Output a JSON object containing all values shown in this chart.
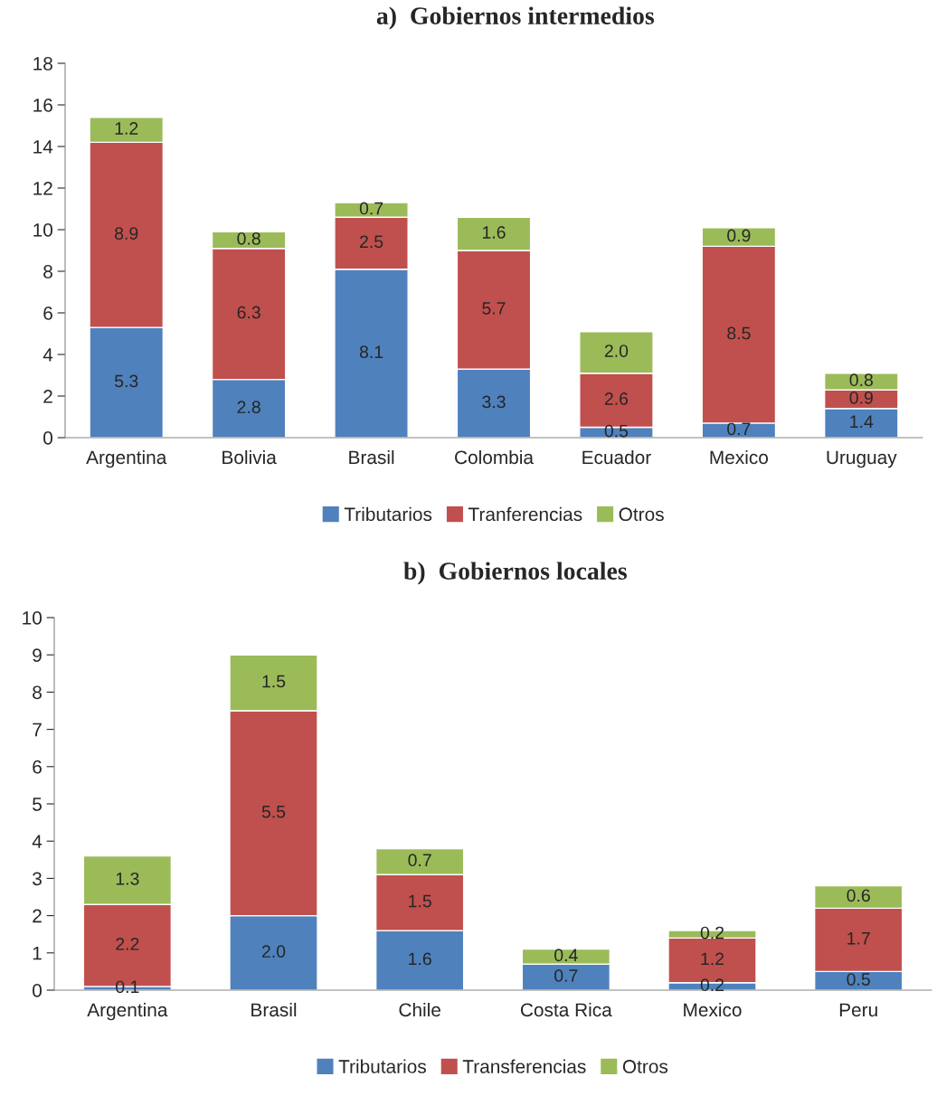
{
  "chart_data": [
    {
      "type": "bar",
      "title": "a)  Gobiernos intermedios",
      "stacked": true,
      "legend": "bottom",
      "grid": false,
      "categories": [
        "Argentina",
        "Bolivia",
        "Brasil",
        "Colombia",
        "Ecuador",
        "Mexico",
        "Uruguay"
      ],
      "ylim": [
        0,
        18
      ],
      "yticks": [
        0,
        2,
        4,
        6,
        8,
        10,
        12,
        14,
        16,
        18
      ],
      "series": [
        {
          "name": "Tributarios",
          "color": "#4f81bd",
          "values": [
            5.3,
            2.8,
            8.1,
            3.3,
            0.5,
            0.7,
            1.4
          ],
          "value_labels": [
            "5.3",
            "2.8",
            "8.1",
            "3.3",
            "0.5",
            "0.7",
            "1.4"
          ]
        },
        {
          "name": "Tranferencias",
          "color": "#c0504d",
          "values": [
            8.9,
            6.3,
            2.5,
            5.7,
            2.6,
            8.5,
            0.9
          ],
          "value_labels": [
            "8.9",
            "6.3",
            "2.5",
            "5.7",
            "2.6",
            "8.5",
            "0.9"
          ]
        },
        {
          "name": "Otros",
          "color": "#9bbb59",
          "values": [
            1.2,
            0.8,
            0.7,
            1.6,
            2.0,
            0.9,
            0.8
          ],
          "value_labels": [
            "1.2",
            "0.8",
            "0.7",
            "1.6",
            "2.0",
            "0.9",
            "0.8"
          ]
        }
      ]
    },
    {
      "type": "bar",
      "title": "b)  Gobiernos locales",
      "stacked": true,
      "legend": "bottom",
      "grid": false,
      "categories": [
        "Argentina",
        "Brasil",
        "Chile",
        "Costa Rica",
        "Mexico",
        "Peru"
      ],
      "ylim": [
        0,
        10
      ],
      "yticks": [
        0,
        1,
        2,
        3,
        4,
        5,
        6,
        7,
        8,
        9,
        10
      ],
      "series": [
        {
          "name": "Tributarios",
          "color": "#4f81bd",
          "values": [
            0.1,
            2.0,
            1.6,
            0.7,
            0.2,
            0.5
          ],
          "value_labels": [
            "0.1",
            "2.0",
            "1.6",
            "0.7",
            "0.2",
            "0.5"
          ]
        },
        {
          "name": "Transferencias",
          "color": "#c0504d",
          "values": [
            2.2,
            5.5,
            1.5,
            null,
            1.2,
            1.7
          ],
          "value_labels": [
            "2.2",
            "5.5",
            "1.5",
            null,
            "1.2",
            "1.7"
          ]
        },
        {
          "name": "Otros",
          "color": "#9bbb59",
          "values": [
            1.3,
            1.5,
            0.7,
            0.4,
            0.2,
            0.6
          ],
          "value_labels": [
            "1.3",
            "1.5",
            "0.7",
            "0.4",
            "0.2",
            "0.6"
          ]
        }
      ]
    }
  ]
}
